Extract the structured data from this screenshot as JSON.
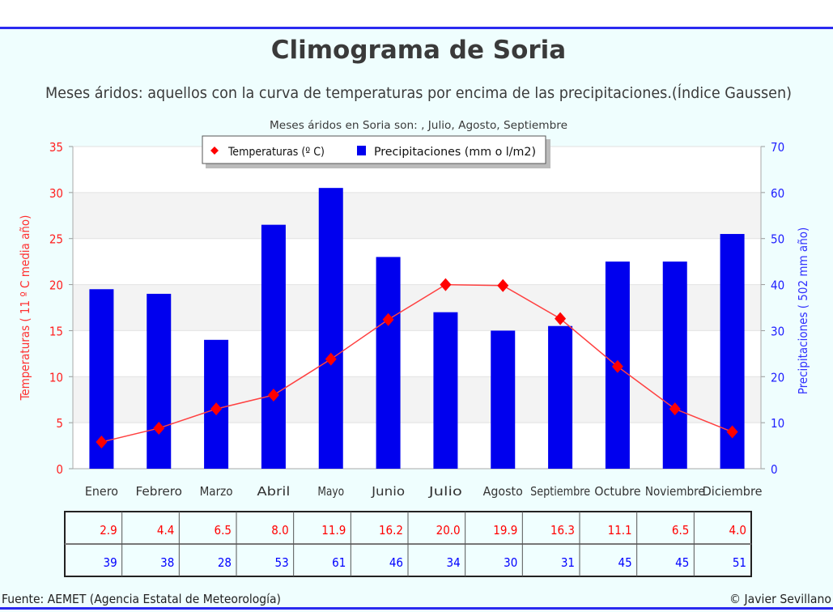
{
  "chart_data": {
    "type": "bar+line",
    "title": "Climograma de Soria",
    "subtitle": "Meses áridos: aquellos con la curva de temperaturas por encima de las precipitaciones.(Índice Gaussen)",
    "note": "Meses áridos en Soria son: , Julio, Agosto, Septiembre",
    "categories": [
      "Enero",
      "Febrero",
      "Marzo",
      "Abril",
      "Mayo",
      "Junio",
      "Julio",
      "Agosto",
      "Septiembre",
      "Octubre",
      "Noviembre",
      "Diciembre"
    ],
    "series": [
      {
        "name": "Temperaturas (º C)",
        "type": "line",
        "axis": "left",
        "color": "#ff0000",
        "values": [
          2.9,
          4.4,
          6.5,
          8.0,
          11.9,
          16.2,
          20.0,
          19.9,
          16.3,
          11.1,
          6.5,
          4.0
        ],
        "labels": [
          "2.9",
          "4.4",
          "6.5",
          "8.0",
          "11.9",
          "16.2",
          "20.0",
          "19.9",
          "16.3",
          "11.1",
          "6.5",
          "4.0"
        ]
      },
      {
        "name": "Precipitaciones (mm o l/m2)",
        "type": "bar",
        "axis": "right",
        "color": "#0000ee",
        "values": [
          39,
          38,
          28,
          53,
          61,
          46,
          34,
          30,
          31,
          45,
          45,
          51
        ],
        "labels": [
          "39",
          "38",
          "28",
          "53",
          "61",
          "46",
          "34",
          "30",
          "31",
          "45",
          "45",
          "51"
        ]
      }
    ],
    "ylabel_left": "Temperaturas ( 11 º C media año)",
    "ylabel_right": "Precipitaciones ( 502 mm año)",
    "ylim_left": [
      0,
      35
    ],
    "ylim_right": [
      0,
      70
    ],
    "yticks_left": [
      "0",
      "5",
      "10",
      "15",
      "20",
      "25",
      "30",
      "35"
    ],
    "yticks_right": [
      "0",
      "10",
      "20",
      "30",
      "40",
      "50",
      "60",
      "70"
    ],
    "legend_position": "top-center",
    "grid": true
  },
  "footer": {
    "source": "Fuente: AEMET (Agencia Estatal de Meteorología)",
    "credit": "© Javier Sevillano"
  }
}
